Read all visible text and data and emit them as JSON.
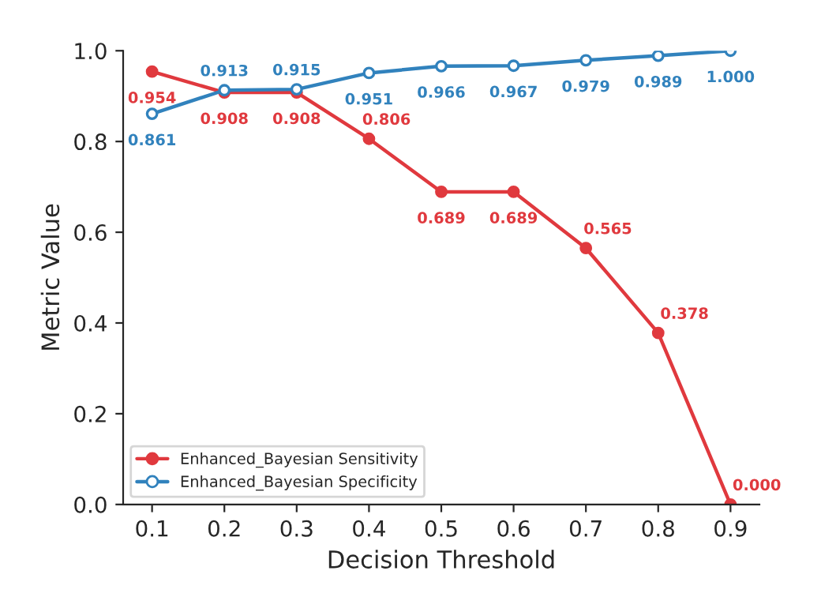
{
  "chart_data": {
    "type": "line",
    "xlabel": "Decision Threshold",
    "ylabel": "Metric Value",
    "x": [
      0.1,
      0.2,
      0.3,
      0.4,
      0.5,
      0.6,
      0.7,
      0.8,
      0.9
    ],
    "series": [
      {
        "name": "Enhanced_Bayesian Sensitivity",
        "color": "#e0393e",
        "values": [
          0.954,
          0.908,
          0.908,
          0.806,
          0.689,
          0.689,
          0.565,
          0.378,
          0.0
        ],
        "value_labels": [
          "0.954",
          "0.908",
          "0.908",
          "0.806",
          "0.689",
          "0.689",
          "0.565",
          "0.378",
          "0.000"
        ]
      },
      {
        "name": "Enhanced_Bayesian Specificity",
        "color": "#3182bd",
        "values": [
          0.861,
          0.913,
          0.915,
          0.951,
          0.966,
          0.967,
          0.979,
          0.989,
          1.0
        ],
        "value_labels": [
          "0.861",
          "0.913",
          "0.915",
          "0.951",
          "0.966",
          "0.967",
          "0.979",
          "0.989",
          "1.000"
        ]
      }
    ],
    "xlim": [
      0.06,
      0.94
    ],
    "xticks": [
      0.1,
      0.2,
      0.3,
      0.4,
      0.5,
      0.6,
      0.7,
      0.8,
      0.9
    ],
    "ylim": [
      0.0,
      1.0
    ],
    "yticks": [
      {
        "value": 0,
        "label": "0.0"
      },
      0.2,
      0.4,
      0.6,
      0.8,
      {
        "value": 1,
        "label": "1.0"
      }
    ],
    "legend": "bottom left",
    "grid": false,
    "marker": "circle",
    "line_style": "solid"
  }
}
